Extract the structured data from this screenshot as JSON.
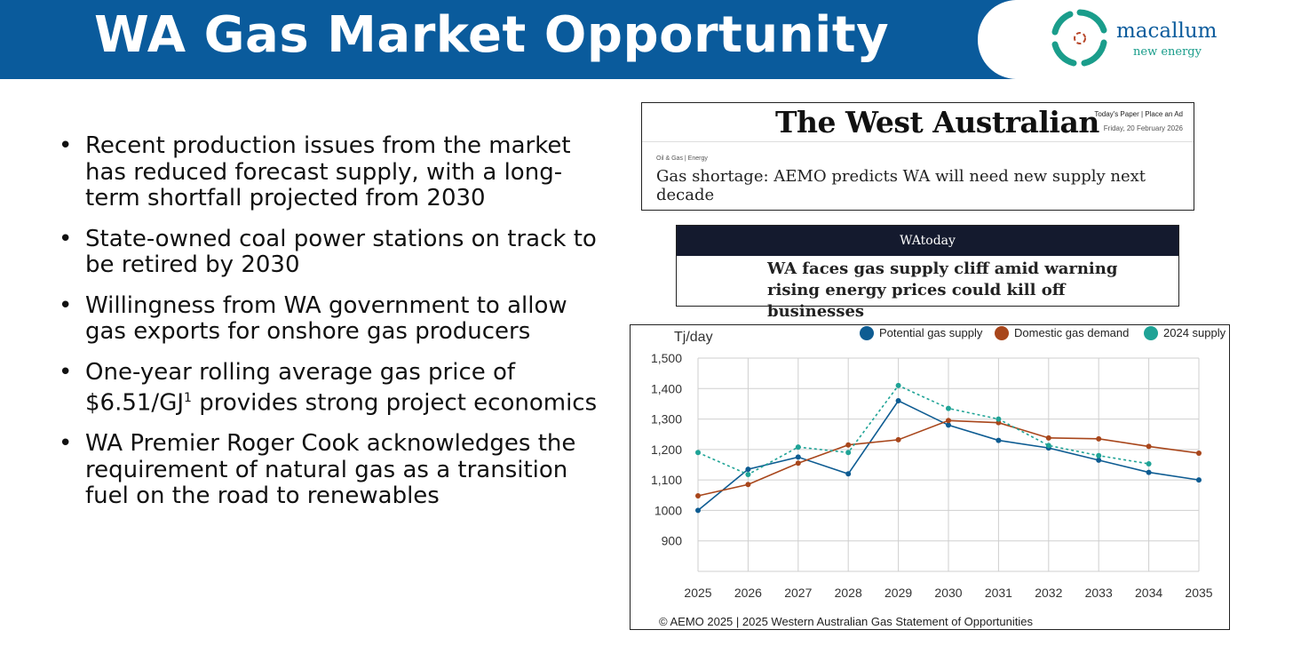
{
  "header": {
    "title": "WA Gas Market Opportunity",
    "logo_name": "macallum",
    "logo_subtitle": "new energy",
    "bar_color": "#0a5b9c",
    "accent_color": "#1a9d8b"
  },
  "bullets": [
    {
      "text": "Recent production issues from the market has reduced forecast supply, with a long-term shortfall projected from 2030"
    },
    {
      "text": "State-owned coal power stations on track to be retired by 2030"
    },
    {
      "text": "Willingness from WA government to allow gas exports for onshore gas producers"
    },
    {
      "text": "One-year rolling average gas price of $6.51/GJ",
      "sup": "1",
      "text_after": " provides strong project economics"
    },
    {
      "text": "WA Premier Roger Cook acknowledges the requirement of natural gas as a transition fuel on the road to renewables"
    }
  ],
  "bullet_symbol": "•",
  "news_west_australian": {
    "masthead": "The West Australian",
    "links": "Today's Paper  |  Place an Ad",
    "date": "Friday, 20 February 2026",
    "tags": "Oil & Gas  |  Energy",
    "headline": "Gas shortage: AEMO predicts WA will need new supply next decade"
  },
  "news_watoday": {
    "brand": "WAtoday",
    "headline": "WA faces gas supply cliff amid warning rising energy prices could kill off businesses"
  },
  "chart_data": {
    "type": "line",
    "ylabel": "Tj/day",
    "x": [
      2025,
      2026,
      2027,
      2028,
      2029,
      2030,
      2031,
      2032,
      2033,
      2034,
      2035
    ],
    "x_tick_labels": [
      "2025",
      "2026",
      "2027",
      "2028",
      "2029",
      "2030",
      "2031",
      "2032",
      "2033",
      "2034",
      "2035"
    ],
    "ylim": [
      800,
      1500
    ],
    "y_ticks": [
      900,
      1000,
      1100,
      1200,
      1300,
      1400,
      1500
    ],
    "y_tick_labels": [
      "900",
      "1000",
      "1,100",
      "1,200",
      "1,300",
      "1,400",
      "1,500"
    ],
    "grid": true,
    "legend_position": "top-right",
    "series": [
      {
        "name": "Potential gas supply",
        "color": "#0e5c92",
        "dashed": false,
        "values": [
          1000,
          1135,
          1175,
          1120,
          1360,
          1280,
          1230,
          1205,
          1165,
          1125,
          1100
        ]
      },
      {
        "name": "Domestic gas demand",
        "color": "#a8461b",
        "dashed": false,
        "values": [
          1048,
          1085,
          1155,
          1215,
          1232,
          1295,
          1288,
          1238,
          1235,
          1210,
          1188
        ]
      },
      {
        "name": "2024 supply",
        "color": "#1fa396",
        "dashed": true,
        "values": [
          1190,
          1118,
          1208,
          1190,
          1410,
          1335,
          1300,
          1213,
          1180,
          1153,
          null
        ]
      }
    ],
    "source": "© AEMO 2025 | 2025 Western Australian Gas Statement of Opportunities"
  }
}
